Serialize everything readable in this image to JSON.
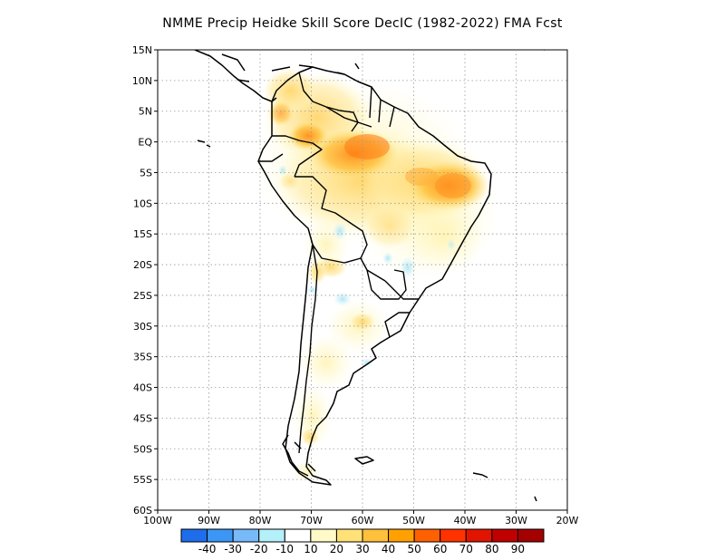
{
  "title": "NMME Precip Heidke Skill Score DecIC (1982-2022) FMA Fcst",
  "map": {
    "lat_labels": [
      "15N",
      "10N",
      "5N",
      "EQ",
      "5S",
      "10S",
      "15S",
      "20S",
      "25S",
      "30S",
      "35S",
      "40S",
      "45S",
      "50S",
      "55S",
      "60S"
    ],
    "lon_labels": [
      "100W",
      "90W",
      "80W",
      "70W",
      "60W",
      "50W",
      "40W",
      "30W",
      "20W"
    ],
    "lat_range": [
      15,
      -60
    ],
    "lon_range": [
      -100,
      -20
    ],
    "grid": "dotted"
  },
  "colorbar": {
    "labels": [
      "-40",
      "-30",
      "-20",
      "-10",
      "10",
      "20",
      "30",
      "40",
      "50",
      "60",
      "70",
      "80",
      "90"
    ],
    "colors": [
      "#1e6eeb",
      "#3c96f5",
      "#78b9fa",
      "#b4f0fa",
      "#ffffff",
      "#fffac8",
      "#ffe178",
      "#ffc03c",
      "#ffa000",
      "#ff6000",
      "#ff3200",
      "#e11400",
      "#c00000",
      "#a50000"
    ]
  }
}
